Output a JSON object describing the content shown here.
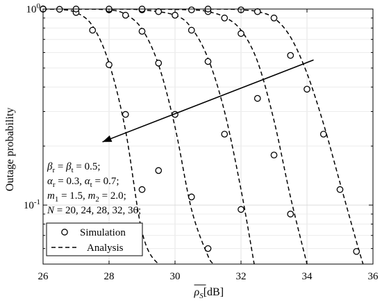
{
  "chart_data": {
    "type": "line",
    "xlabel": "ρ̄_S[dB]",
    "ylabel": "Outage probability",
    "xlim": [
      26,
      36
    ],
    "ylim": [
      0.05,
      1.0
    ],
    "yscale": "log",
    "grid": true,
    "x_ticks": [
      26,
      28,
      30,
      32,
      34,
      36
    ],
    "x_tick_labels": [
      "26",
      "28",
      "30",
      "32",
      "34",
      "36"
    ],
    "y_tick_labels": [
      {
        "value": 1,
        "base": "10",
        "exp": "0"
      },
      {
        "value": 0.1,
        "base": "10",
        "exp": "-1"
      }
    ],
    "legend": {
      "position": "bottom-left",
      "entries": [
        {
          "label": "Simulation",
          "style": "marker-circle"
        },
        {
          "label": "Analysis",
          "style": "dashed-line"
        }
      ]
    },
    "annotation": {
      "lines": [
        "β_r = β_t = 0.5;",
        "α_r = 0.3, α_t = 0.7;",
        "m_1 = 1.5, m_2 = 2.0;",
        "N = 20, 24, 28, 32, 36;"
      ],
      "arrow": {
        "from": [
          34.2,
          0.55
        ],
        "to": [
          27.8,
          0.21
        ]
      }
    },
    "series": [
      {
        "x": [
          26,
          26.5,
          27,
          27.5,
          28,
          28.5,
          29,
          29.5,
          30
        ],
        "values": [
          1.0,
          0.995,
          0.96,
          0.82,
          0.53,
          0.24,
          0.073,
          0.05,
          0.05
        ],
        "sim_x": [
          26,
          26.5,
          27,
          27.5,
          28,
          28.5,
          29,
          29.5
        ],
        "sim_values": [
          1.0,
          0.997,
          0.96,
          0.78,
          0.52,
          0.29,
          0.12,
          0.15
        ]
      },
      {
        "x": [
          26,
          27,
          28,
          28.5,
          29,
          29.5,
          30,
          30.5,
          31,
          31.2
        ],
        "values": [
          1.0,
          1.0,
          0.99,
          0.94,
          0.79,
          0.52,
          0.25,
          0.095,
          0.055,
          0.05
        ],
        "sim_x": [
          26,
          27,
          28,
          28.5,
          29,
          29.5,
          30,
          30.5,
          31
        ],
        "sim_values": [
          1.0,
          1.0,
          0.99,
          0.93,
          0.77,
          0.53,
          0.29,
          0.11,
          0.06
        ]
      },
      {
        "x": [
          26,
          28,
          29,
          30,
          30.5,
          31,
          31.5,
          32,
          32.4
        ],
        "values": [
          1.0,
          1.0,
          0.99,
          0.93,
          0.8,
          0.56,
          0.3,
          0.12,
          0.05
        ],
        "sim_x": [
          26,
          28,
          29,
          29.5,
          30,
          30.5,
          31,
          31.5,
          32
        ],
        "sim_values": [
          1.0,
          1.0,
          0.99,
          0.97,
          0.93,
          0.78,
          0.54,
          0.23,
          0.095
        ]
      },
      {
        "x": [
          26,
          29,
          30.5,
          31,
          31.5,
          32,
          32.5,
          33,
          33.5,
          34
        ],
        "values": [
          1.0,
          1.0,
          0.99,
          0.97,
          0.91,
          0.78,
          0.54,
          0.27,
          0.11,
          0.05
        ],
        "sim_x": [
          26,
          29,
          30.5,
          31,
          31.5,
          32,
          32.5,
          33,
          33.5
        ],
        "sim_values": [
          1.0,
          1.0,
          0.99,
          0.97,
          0.9,
          0.75,
          0.35,
          0.18,
          0.09
        ]
      },
      {
        "x": [
          26,
          31,
          32,
          32.5,
          33,
          33.5,
          34,
          34.5,
          35,
          35.5,
          35.7
        ],
        "values": [
          1.0,
          1.0,
          0.99,
          0.97,
          0.9,
          0.72,
          0.47,
          0.26,
          0.13,
          0.065,
          0.05
        ],
        "sim_x": [
          26,
          31,
          32,
          32.5,
          33,
          33.5,
          34,
          34.5,
          35,
          35.5
        ],
        "sim_values": [
          1.0,
          1.0,
          0.99,
          0.97,
          0.9,
          0.58,
          0.39,
          0.23,
          0.12,
          0.058
        ]
      }
    ]
  }
}
